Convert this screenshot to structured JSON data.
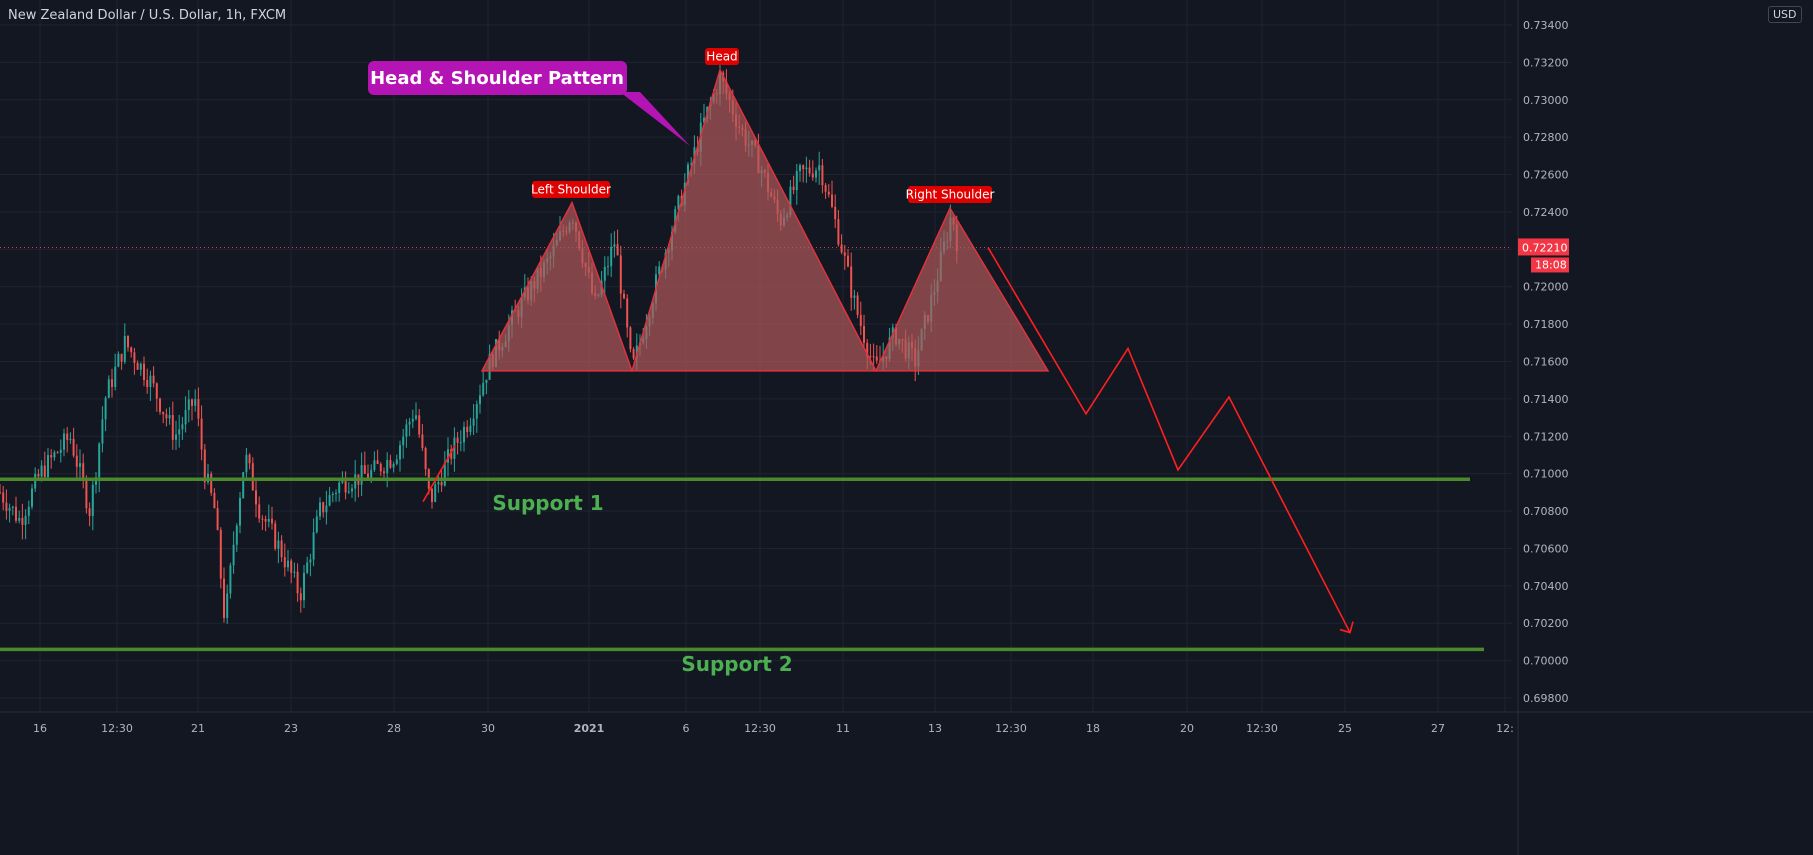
{
  "header": {
    "title": "New Zealand Dollar / U.S. Dollar, 1h, FXCM",
    "currency": "USD"
  },
  "colors": {
    "background": "#131722",
    "grid": "#1f2330",
    "candle_up": "#26a69a",
    "candle_down": "#ef5350",
    "pattern_fill": "#b05a5a",
    "pattern_line": "#e0323c",
    "projection": "#ff1f1f",
    "support": "#4a8a2a",
    "support_text": "#4caf50",
    "callout": "#b514b5",
    "price_label": "#f23645"
  },
  "chart_data": {
    "type": "candlestick",
    "symbol": "New Zealand Dollar / U.S. Dollar",
    "interval": "1h",
    "source": "FXCM",
    "x_ticks": [
      "16",
      "12:30",
      "21",
      "23",
      "28",
      "30",
      "2021",
      "6",
      "12:30",
      "11",
      "13",
      "12:30",
      "18",
      "20",
      "12:30",
      "25",
      "27",
      "12:"
    ],
    "y_ticks": [
      "0.73400",
      "0.73200",
      "0.73000",
      "0.72800",
      "0.72600",
      "0.72400",
      "0.72200",
      "0.72000",
      "0.71800",
      "0.71600",
      "0.71400",
      "0.71200",
      "0.71000",
      "0.70800",
      "0.70600",
      "0.70400",
      "0.70200",
      "0.70000",
      "0.69800"
    ],
    "ylim": [
      0.6975,
      0.735
    ],
    "current_price": "0.72210",
    "countdown": "18:08",
    "price_path": [
      [
        0,
        0.709
      ],
      [
        20,
        0.7075
      ],
      [
        40,
        0.71
      ],
      [
        70,
        0.712
      ],
      [
        90,
        0.708
      ],
      [
        105,
        0.714
      ],
      [
        125,
        0.717
      ],
      [
        150,
        0.715
      ],
      [
        175,
        0.712
      ],
      [
        195,
        0.714
      ],
      [
        205,
        0.71
      ],
      [
        215,
        0.708
      ],
      [
        225,
        0.702
      ],
      [
        235,
        0.707
      ],
      [
        245,
        0.711
      ],
      [
        260,
        0.708
      ],
      [
        280,
        0.706
      ],
      [
        300,
        0.7035
      ],
      [
        320,
        0.708
      ],
      [
        340,
        0.7095
      ],
      [
        370,
        0.71
      ],
      [
        395,
        0.711
      ],
      [
        415,
        0.7135
      ],
      [
        430,
        0.7085
      ],
      [
        450,
        0.711
      ],
      [
        470,
        0.713
      ],
      [
        490,
        0.716
      ],
      [
        520,
        0.719
      ],
      [
        550,
        0.7215
      ],
      [
        572,
        0.724
      ],
      [
        595,
        0.719
      ],
      [
        615,
        0.7225
      ],
      [
        632,
        0.7155
      ],
      [
        655,
        0.72
      ],
      [
        685,
        0.7255
      ],
      [
        705,
        0.729
      ],
      [
        720,
        0.7312
      ],
      [
        740,
        0.7285
      ],
      [
        760,
        0.7265
      ],
      [
        780,
        0.7235
      ],
      [
        800,
        0.726
      ],
      [
        820,
        0.7265
      ],
      [
        840,
        0.7225
      ],
      [
        855,
        0.719
      ],
      [
        875,
        0.7155
      ],
      [
        895,
        0.7175
      ],
      [
        915,
        0.716
      ],
      [
        935,
        0.72
      ],
      [
        952,
        0.724
      ],
      [
        958,
        0.7221
      ]
    ],
    "annotations": {
      "callout": "Head & Shoulder Pattern",
      "head": "Head",
      "left_shoulder": "Left Shoulder",
      "right_shoulder": "Right Shoulder",
      "support_1": "Support 1",
      "support_2": "Support 2"
    },
    "support_levels": [
      0.7097,
      0.7006
    ],
    "neckline": 0.7155,
    "pattern_points": {
      "left_shoulder": {
        "start_index": 482,
        "peak": 0.7245,
        "end_index": 632
      },
      "head": {
        "start_index": 632,
        "peak": 0.7316,
        "end_index": 876
      },
      "right_shoulder": {
        "start_index": 876,
        "peak": 0.7242,
        "end_index": 1048
      }
    },
    "projection_path": [
      [
        988,
        0.7221
      ],
      [
        1086,
        0.7132
      ],
      [
        1128,
        0.7167
      ],
      [
        1178,
        0.7102
      ],
      [
        1229,
        0.7141
      ],
      [
        1350,
        0.7015
      ]
    ],
    "entry_line": [
      [
        423,
        0.7085
      ],
      [
        455,
        0.7115
      ]
    ]
  }
}
